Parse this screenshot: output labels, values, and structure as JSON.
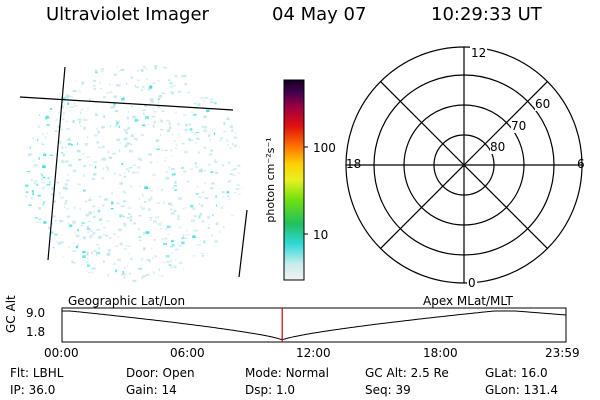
{
  "header": {
    "instrument": "Ultraviolet Imager",
    "date": "04 May 07",
    "time": "10:29:33 UT"
  },
  "colorbar": {
    "unit_label": "photon cm⁻²s⁻¹",
    "ticks": [
      "100",
      "10"
    ]
  },
  "polar_plot": {
    "mlt_labels": [
      "12",
      "18",
      "6",
      "0"
    ],
    "lat_labels": [
      "60",
      "70",
      "80"
    ]
  },
  "altitude_panel": {
    "y_label": "GC Alt",
    "y_ticks": [
      "9.0",
      "1.8"
    ],
    "left_caption": "Geographic Lat/Lon",
    "right_caption": "Apex  MLat/MLT",
    "x_ticks": [
      "00:00",
      "06:00",
      "12:00",
      "18:00",
      "23:59"
    ],
    "current_time_fraction": 0.437
  },
  "footer": {
    "row1": [
      {
        "label": "Flt:",
        "value": "LBHL"
      },
      {
        "label": "Door:",
        "value": "Open"
      },
      {
        "label": "Mode:",
        "value": "Normal"
      },
      {
        "label": "GC Alt:",
        "value": "2.5 Re"
      },
      {
        "label": "GLat:",
        "value": "16.0"
      }
    ],
    "row2": [
      {
        "label": "IP:",
        "value": "36.0"
      },
      {
        "label": "Gain:",
        "value": "14"
      },
      {
        "label": "Dsp:",
        "value": "1.0"
      },
      {
        "label": "Seq:",
        "value": "39"
      },
      {
        "label": "GLon:",
        "value": "131.4"
      }
    ]
  },
  "colors": {
    "line": "#000000",
    "marker": "#cc0000",
    "speckle": "#40e0e0"
  }
}
